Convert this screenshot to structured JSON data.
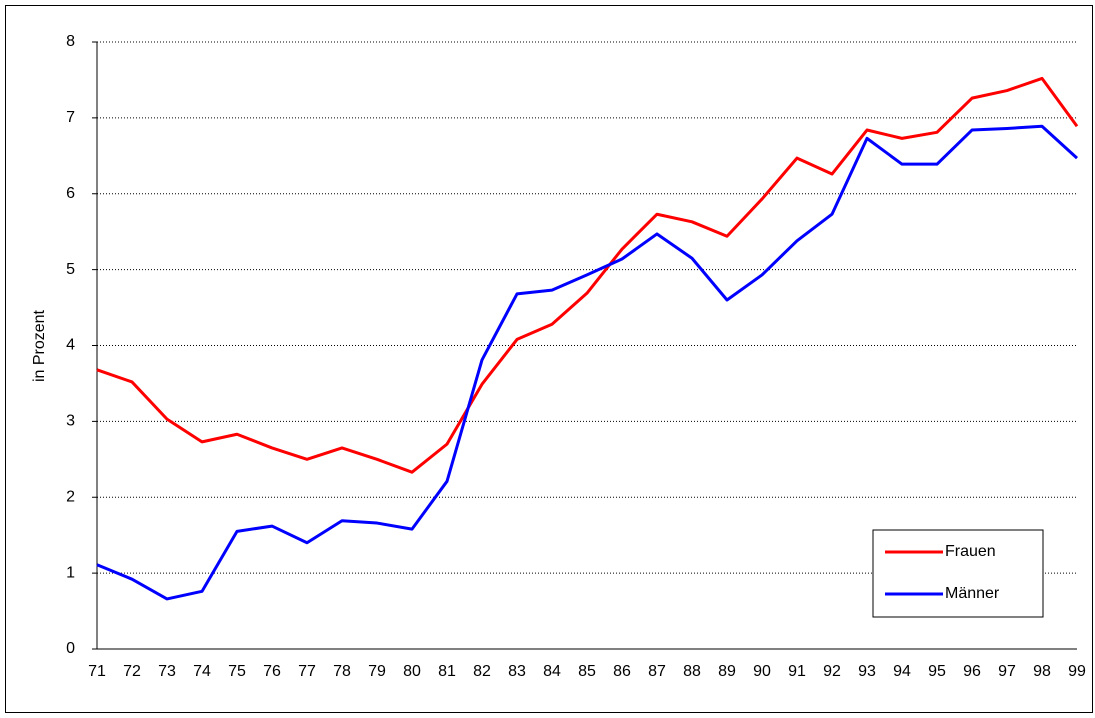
{
  "chart_data": {
    "type": "line",
    "y_label": "in Prozent",
    "categories": [
      "71",
      "72",
      "73",
      "74",
      "75",
      "76",
      "77",
      "78",
      "79",
      "80",
      "81",
      "82",
      "83",
      "84",
      "85",
      "86",
      "87",
      "88",
      "89",
      "90",
      "91",
      "92",
      "93",
      "94",
      "95",
      "96",
      "97",
      "98",
      "99"
    ],
    "series": [
      {
        "name": "Frauen",
        "color": "#ff0000",
        "values": [
          3.68,
          3.52,
          3.03,
          2.73,
          2.83,
          2.65,
          2.5,
          2.65,
          2.5,
          2.33,
          2.7,
          3.49,
          4.08,
          4.28,
          4.69,
          5.27,
          5.73,
          5.63,
          5.44,
          5.93,
          6.47,
          6.26,
          6.84,
          6.73,
          6.81,
          7.26,
          7.36,
          7.52,
          6.89
        ]
      },
      {
        "name": "Männer",
        "color": "#0000ff",
        "values": [
          1.11,
          0.92,
          0.66,
          0.76,
          1.55,
          1.62,
          1.4,
          1.69,
          1.66,
          1.58,
          2.21,
          3.81,
          4.68,
          4.73,
          4.93,
          5.14,
          5.47,
          5.15,
          4.6,
          4.93,
          5.38,
          5.73,
          6.73,
          6.39,
          6.39,
          6.84,
          6.86,
          6.89,
          6.47
        ]
      }
    ],
    "ylim": [
      0,
      8
    ],
    "yticks": [
      0,
      1,
      2,
      3,
      4,
      5,
      6,
      7,
      8
    ],
    "grid": true,
    "legend": "bottom-right"
  }
}
